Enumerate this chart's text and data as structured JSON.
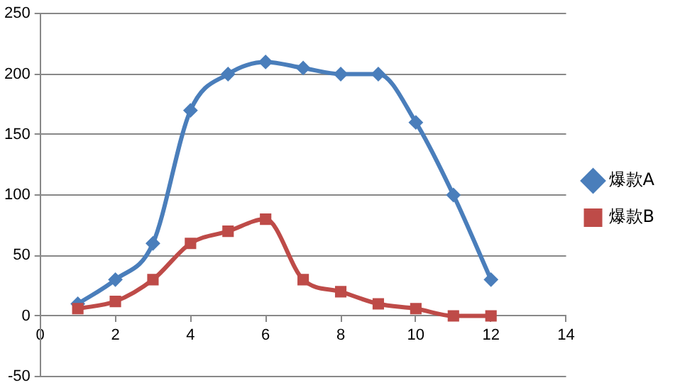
{
  "chart_data": {
    "type": "line",
    "x": [
      1,
      2,
      3,
      4,
      5,
      6,
      7,
      8,
      9,
      10,
      11,
      12
    ],
    "series": [
      {
        "name": "爆款A",
        "color": "#4a7ebb",
        "values": [
          10,
          30,
          60,
          170,
          200,
          210,
          205,
          200,
          200,
          160,
          100,
          30
        ],
        "marker": "diamond"
      },
      {
        "name": "爆款B",
        "color": "#be4b48",
        "values": [
          6,
          12,
          30,
          60,
          70,
          80,
          30,
          20,
          10,
          6,
          0,
          0
        ],
        "marker": "square"
      }
    ],
    "xlim": [
      0,
      14
    ],
    "xticks": [
      0,
      2,
      4,
      6,
      8,
      10,
      12,
      14
    ],
    "ylim": [
      -50,
      250
    ],
    "yticks": [
      -50,
      0,
      50,
      100,
      150,
      200,
      250
    ],
    "grid": "y",
    "legend": "right",
    "line_style": "solid"
  }
}
